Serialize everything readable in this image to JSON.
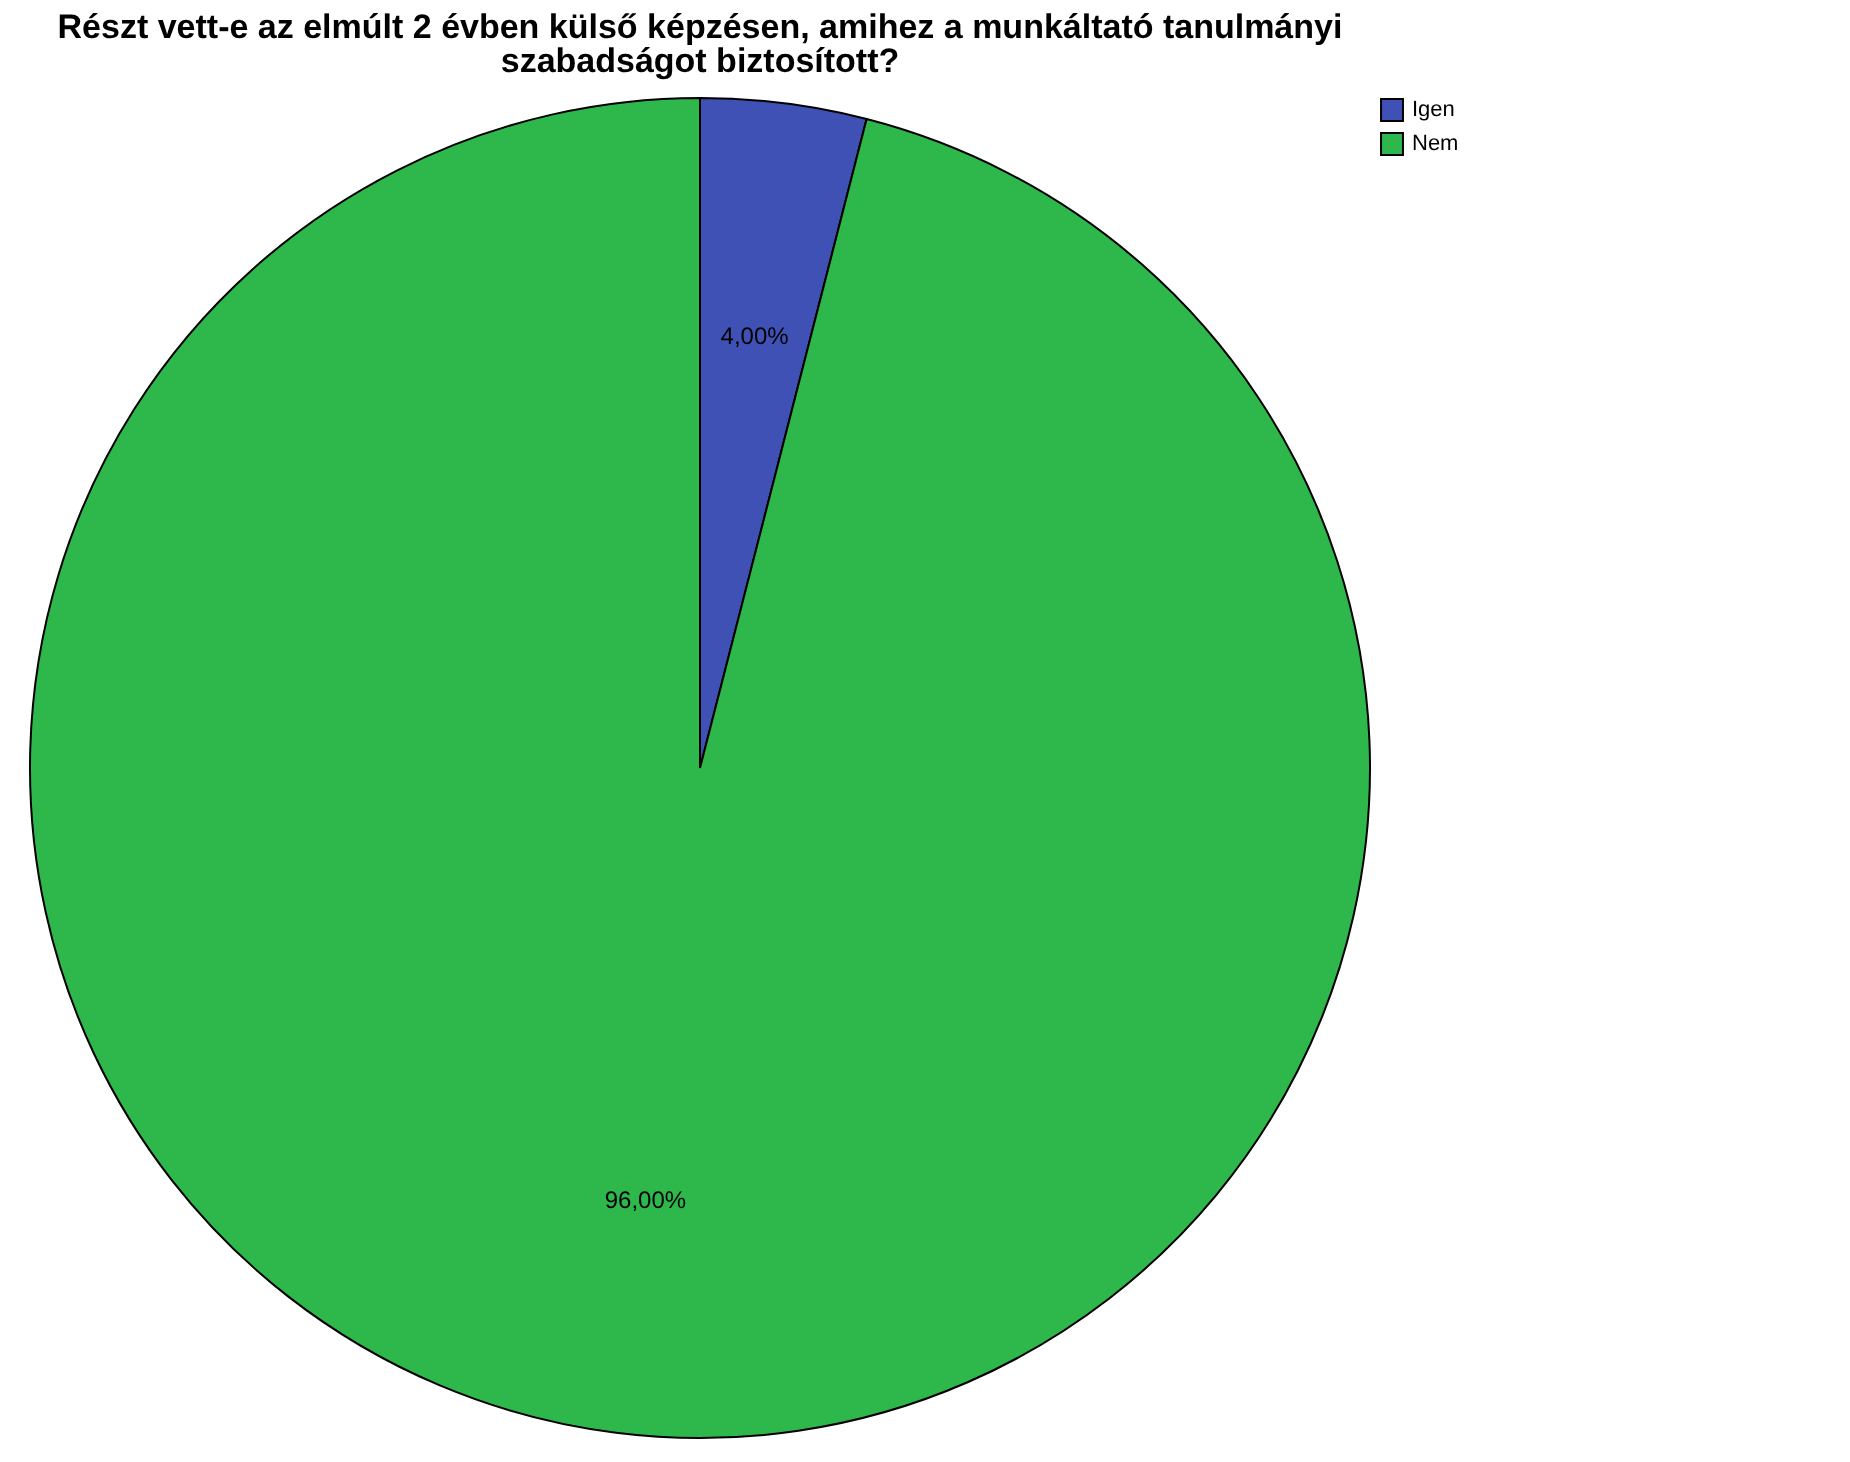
{
  "chart_data": {
    "type": "pie",
    "title": "Részt vett-e az elmúlt 2 évben külső képzésen, amihez a munkáltató tanulmányi szabadságot biztosított?",
    "categories": [
      "Igen",
      "Nem"
    ],
    "values": [
      4,
      96
    ],
    "colors": [
      "#3f51b5",
      "#2eb84b"
    ],
    "value_labels": [
      "4,00%",
      "96,00%"
    ],
    "legend": "top right"
  }
}
